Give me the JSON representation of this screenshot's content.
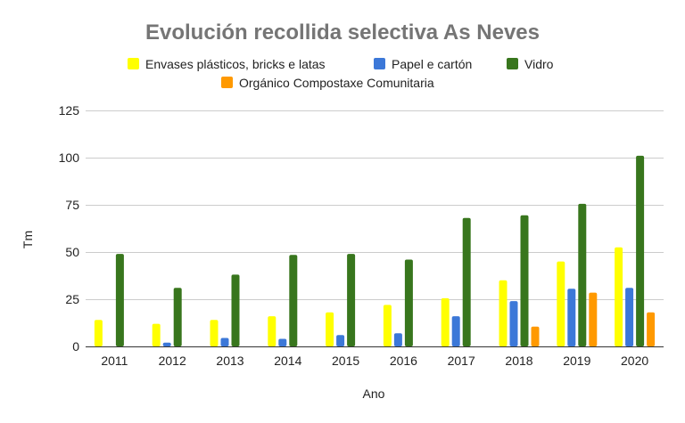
{
  "chart_data": {
    "type": "bar",
    "title": "Evolución recollida selectiva As Neves",
    "xlabel": "Ano",
    "ylabel": "Tm",
    "ylim": [
      0,
      125
    ],
    "yticks": [
      0,
      25,
      50,
      75,
      100,
      125
    ],
    "grid": true,
    "legend_position": "top",
    "categories": [
      "2011",
      "2012",
      "2013",
      "2014",
      "2015",
      "2016",
      "2017",
      "2018",
      "2019",
      "2020"
    ],
    "series": [
      {
        "name": "Envases plásticos, bricks e latas",
        "color": "#ffff00",
        "values": [
          14,
          12,
          14,
          16,
          18,
          22,
          25.5,
          35,
          45,
          52.5
        ]
      },
      {
        "name": "Papel e cartón",
        "color": "#3c78d8",
        "values": [
          0,
          2,
          4.5,
          4,
          6,
          7,
          16,
          24,
          30.5,
          31
        ]
      },
      {
        "name": "Vidro",
        "color": "#38761d",
        "values": [
          49,
          31,
          38,
          48.5,
          49,
          46,
          68,
          69.5,
          75.5,
          101
        ]
      },
      {
        "name": "Orgánico Compostaxe Comunitaria",
        "color": "#ff9900",
        "values": [
          0,
          0,
          0,
          0,
          0,
          0,
          0,
          10.5,
          28.5,
          18
        ]
      }
    ]
  }
}
